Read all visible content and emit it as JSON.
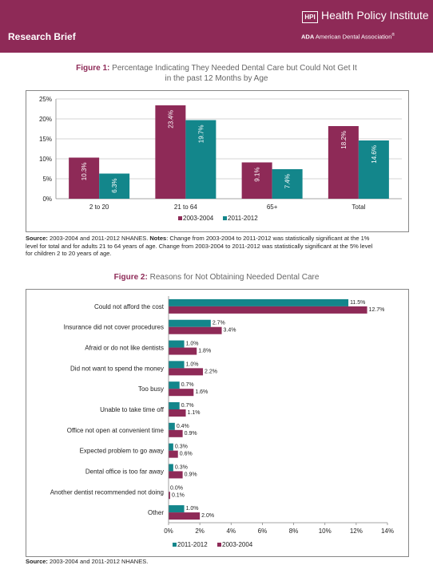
{
  "header": {
    "section": "Research Brief",
    "logo_abbr": "HPI",
    "institute": "Health Policy Institute",
    "ada_abbr": "ADA",
    "ada_name": "American Dental Association",
    "ada_reg": "®"
  },
  "figure1": {
    "label": "Figure 1:",
    "title_line1": " Percentage Indicating They Needed Dental Care but Could Not Get It",
    "title_line2": "in the past 12 Months by Age"
  },
  "figure2": {
    "label": "Figure 2:",
    "title": " Reasons for Not Obtaining Needed Dental Care"
  },
  "source1": {
    "bold1": "Source:",
    "text1": " 2003-2004 and 2011-2012 NHANES. ",
    "bold2": "Notes",
    "text2": ": Change from 2003-2004 to 2011-2012 was statistically significant at the 1%",
    "line2": "level for total and for adults 21 to 64 years of age.  Change from 2003-2004 to 2011-2012 was statistically significant at the 5% level",
    "line3": "for children 2 to 20 years of age."
  },
  "source2": {
    "bold": "Source:",
    "text": " 2003-2004 and 2011-2012 NHANES."
  },
  "colors": {
    "maroon": "#8e2a57",
    "teal": "#13868b"
  },
  "chart_data": [
    {
      "type": "bar",
      "categories": [
        "2 to 20",
        "21 to 64",
        "65+",
        "Total"
      ],
      "series": [
        {
          "name": "2003-2004",
          "values": [
            10.3,
            23.4,
            9.1,
            18.2
          ],
          "labels": [
            "10.3%",
            "23.4%",
            "9.1%",
            "18.2%"
          ],
          "color": "#8e2a57"
        },
        {
          "name": "2011-2012",
          "values": [
            6.3,
            19.7,
            7.4,
            14.6
          ],
          "labels": [
            "6.3%",
            "19.7%",
            "7.4%",
            "14.6%"
          ],
          "color": "#13868b"
        }
      ],
      "yticks": [
        "0%",
        "5%",
        "10%",
        "15%",
        "20%",
        "25%"
      ],
      "ylim": [
        0,
        25
      ],
      "legend": "bottom",
      "grid": true
    },
    {
      "type": "bar",
      "orientation": "horizontal",
      "categories": [
        "Could not afford the cost",
        "Insurance did not cover procedures",
        "Afraid or do not like dentists",
        "Did not want to spend the money",
        "Too busy",
        "Unable to take time off",
        "Office not open at convenient time",
        "Expected problem to go away",
        "Dental office is too far away",
        "Another dentist recommended not doing",
        "Other"
      ],
      "series": [
        {
          "name": "2011-2012",
          "values": [
            11.5,
            2.7,
            1.0,
            1.0,
            0.7,
            0.7,
            0.4,
            0.3,
            0.3,
            0.0,
            1.0
          ],
          "labels": [
            "11.5%",
            "2.7%",
            "1.0%",
            "1.0%",
            "0.7%",
            "0.7%",
            "0.4%",
            "0.3%",
            "0.3%",
            "0.0%",
            "1.0%"
          ],
          "color": "#13868b"
        },
        {
          "name": "2003-2004",
          "values": [
            12.7,
            3.4,
            1.8,
            2.2,
            1.6,
            1.1,
            0.9,
            0.6,
            0.9,
            0.1,
            2.0
          ],
          "labels": [
            "12.7%",
            "3.4%",
            "1.8%",
            "2.2%",
            "1.6%",
            "1.1%",
            "0.9%",
            "0.6%",
            "0.9%",
            "0.1%",
            "2.0%"
          ],
          "color": "#8e2a57"
        }
      ],
      "xticks": [
        "0%",
        "2%",
        "4%",
        "6%",
        "8%",
        "10%",
        "12%",
        "14%"
      ],
      "xlim": [
        0,
        14
      ],
      "legend": "bottom",
      "grid": false
    }
  ]
}
